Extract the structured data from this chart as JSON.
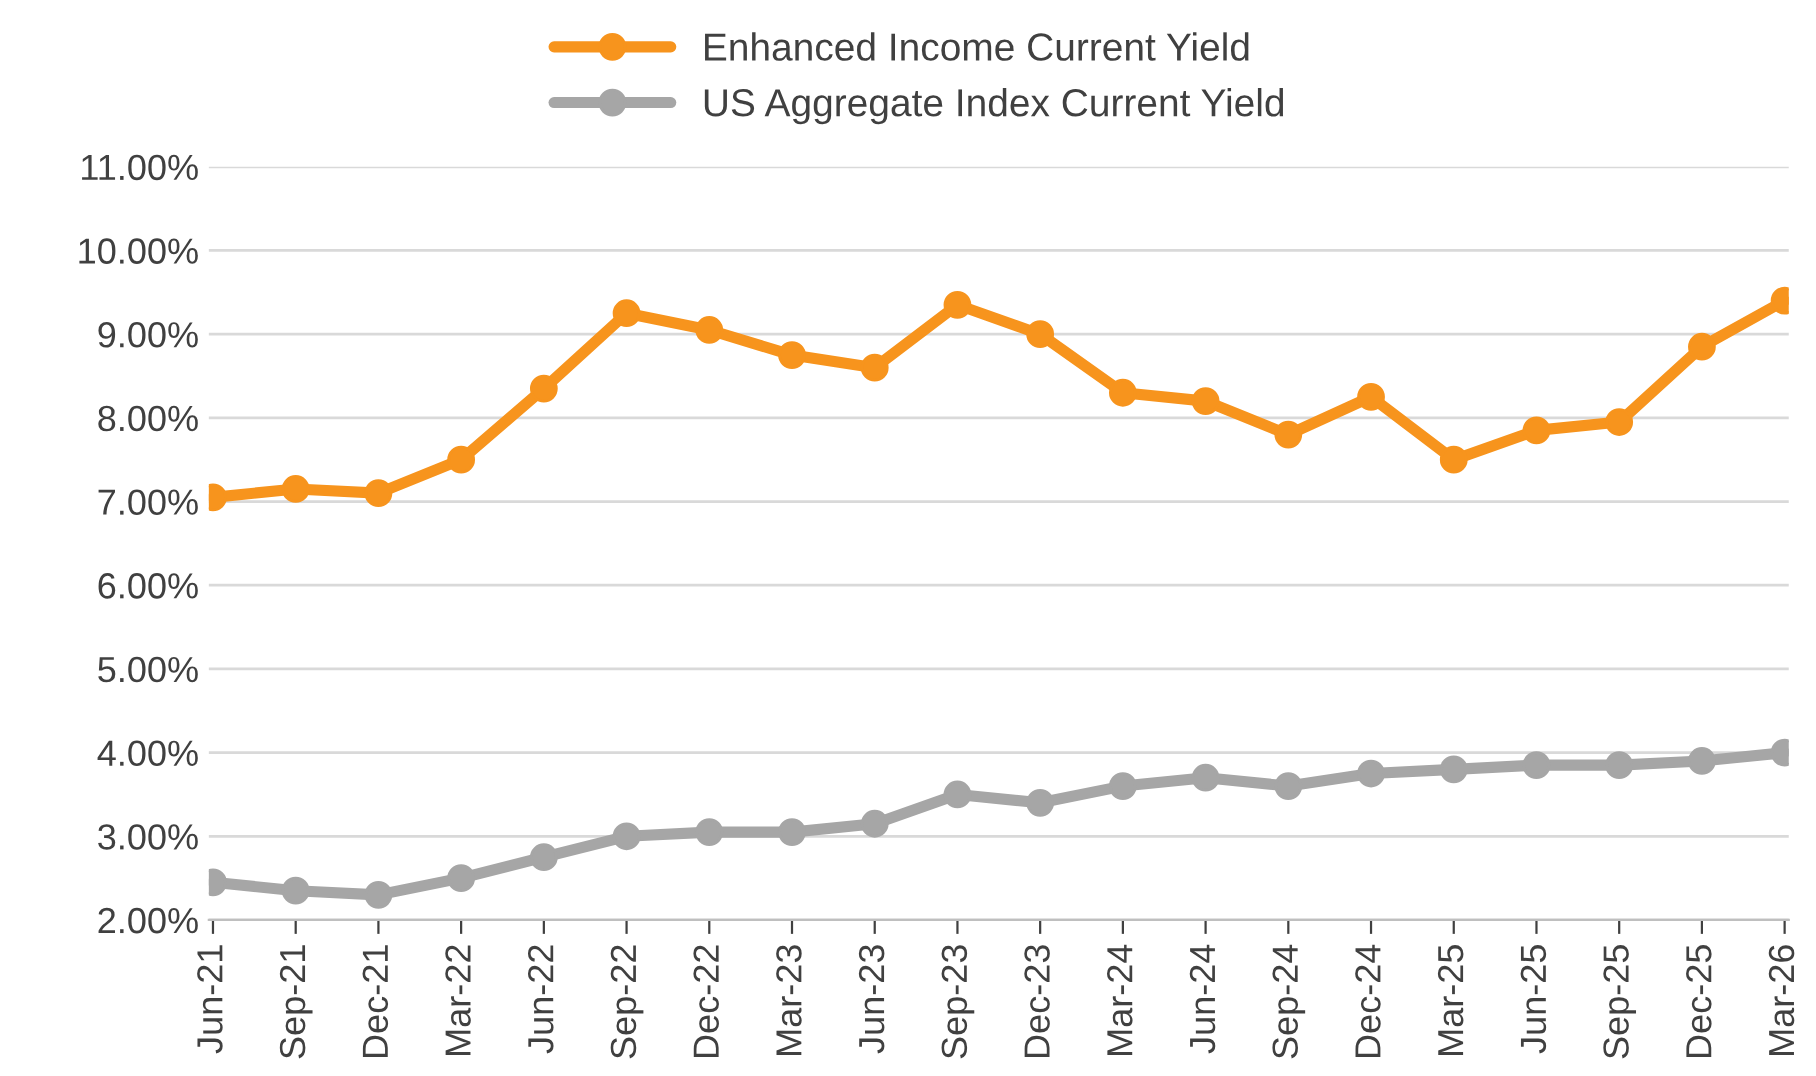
{
  "chart_data": {
    "type": "line",
    "categories": [
      "Jun-21",
      "Sep-21",
      "Dec-21",
      "Mar-22",
      "Jun-22",
      "Sep-22",
      "Dec-22",
      "Mar-23",
      "Jun-23",
      "Sep-23",
      "Dec-23",
      "Mar-24",
      "Jun-24",
      "Sep-24",
      "Dec-24",
      "Mar-25",
      "Jun-25",
      "Sep-25",
      "Dec-25",
      "Mar-26"
    ],
    "series": [
      {
        "name": "Enhanced Income Current Yield",
        "color": "#f7941d",
        "values": [
          7.05,
          7.15,
          7.1,
          7.5,
          8.35,
          9.25,
          9.05,
          8.75,
          8.6,
          9.35,
          9.0,
          8.3,
          8.2,
          7.8,
          8.25,
          7.5,
          7.85,
          7.95,
          8.85,
          9.4
        ]
      },
      {
        "name": "US Aggregate Index Current Yield",
        "color": "#a6a6a6",
        "values": [
          2.45,
          2.35,
          2.3,
          2.5,
          2.75,
          3.0,
          3.05,
          3.05,
          3.15,
          3.5,
          3.4,
          3.6,
          3.7,
          3.6,
          3.75,
          3.8,
          3.85,
          3.85,
          3.9,
          4.0
        ]
      }
    ],
    "ylim": [
      2,
      11
    ],
    "yticks": [
      {
        "value": 2,
        "label": "2.00%"
      },
      {
        "value": 3,
        "label": "3.00%"
      },
      {
        "value": 4,
        "label": "4.00%"
      },
      {
        "value": 5,
        "label": "5.00%"
      },
      {
        "value": 6,
        "label": "6.00%"
      },
      {
        "value": 7,
        "label": "7.00%"
      },
      {
        "value": 8,
        "label": "8.00%"
      },
      {
        "value": 9,
        "label": "9.00%"
      },
      {
        "value": 10,
        "label": "10.00%"
      },
      {
        "value": 11,
        "label": "11.00%"
      }
    ],
    "grid": "y",
    "legend": "top",
    "marker": "circle",
    "line_style": "solid"
  }
}
